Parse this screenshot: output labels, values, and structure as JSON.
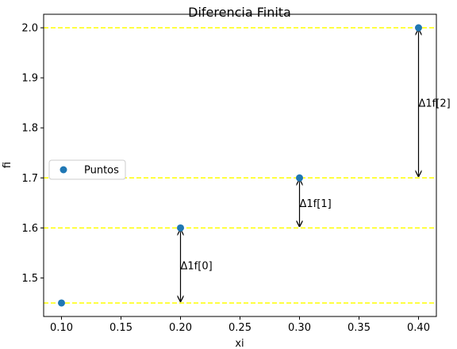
{
  "chart_data": {
    "type": "scatter",
    "title": "Diferencia Finita",
    "xlabel": "xi",
    "ylabel": "fi",
    "xlim": [
      0.085,
      0.415
    ],
    "ylim": [
      1.423,
      2.027
    ],
    "x_ticks": [
      "0.10",
      "0.15",
      "0.20",
      "0.25",
      "0.30",
      "0.35",
      "0.40"
    ],
    "y_ticks": [
      "1.5",
      "1.6",
      "1.7",
      "1.8",
      "1.9",
      "2.0"
    ],
    "series": [
      {
        "name": "Puntos",
        "x": [
          0.1,
          0.2,
          0.3,
          0.4
        ],
        "y": [
          1.45,
          1.6,
          1.7,
          2.0
        ],
        "color": "#1f77b4"
      }
    ],
    "hlines": {
      "y": [
        2.0,
        1.7,
        1.6,
        1.45
      ],
      "color": "#ffff00",
      "style": "dashed"
    },
    "annotations": [
      {
        "text": "Δ1f[0]",
        "x": 0.2,
        "y_from": 1.45,
        "y_to": 1.6
      },
      {
        "text": "Δ1f[1]",
        "x": 0.3,
        "y_from": 1.6,
        "y_to": 1.7
      },
      {
        "text": "Δ1f[2]",
        "x": 0.4,
        "y_from": 1.7,
        "y_to": 2.0
      }
    ],
    "legend": {
      "position": "center-left",
      "label": "Puntos"
    },
    "grid": false
  }
}
